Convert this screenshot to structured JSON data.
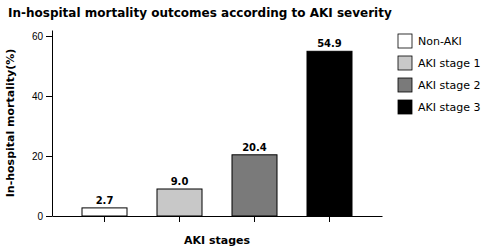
{
  "chart_data": {
    "type": "bar",
    "title": "In-hospital mortality outcomes according to AKI severity",
    "xlabel": "AKI stages",
    "ylabel": "In-hospital mortality(%)",
    "categories": [
      "Non-AKI",
      "AKI stage 1",
      "AKI stage 2",
      "AKI stage 3"
    ],
    "values": [
      2.7,
      9.0,
      20.4,
      54.9
    ],
    "value_labels": [
      "2.7",
      "9.0",
      "20.4",
      "54.9"
    ],
    "colors": [
      "#ffffff",
      "#c8c8c8",
      "#7a7a7a",
      "#000000"
    ],
    "ylim": [
      0,
      62
    ],
    "yticks": [
      0,
      20,
      40,
      60
    ],
    "grid": false,
    "legend": "right",
    "data_labels": true,
    "tick_labels": "y"
  }
}
